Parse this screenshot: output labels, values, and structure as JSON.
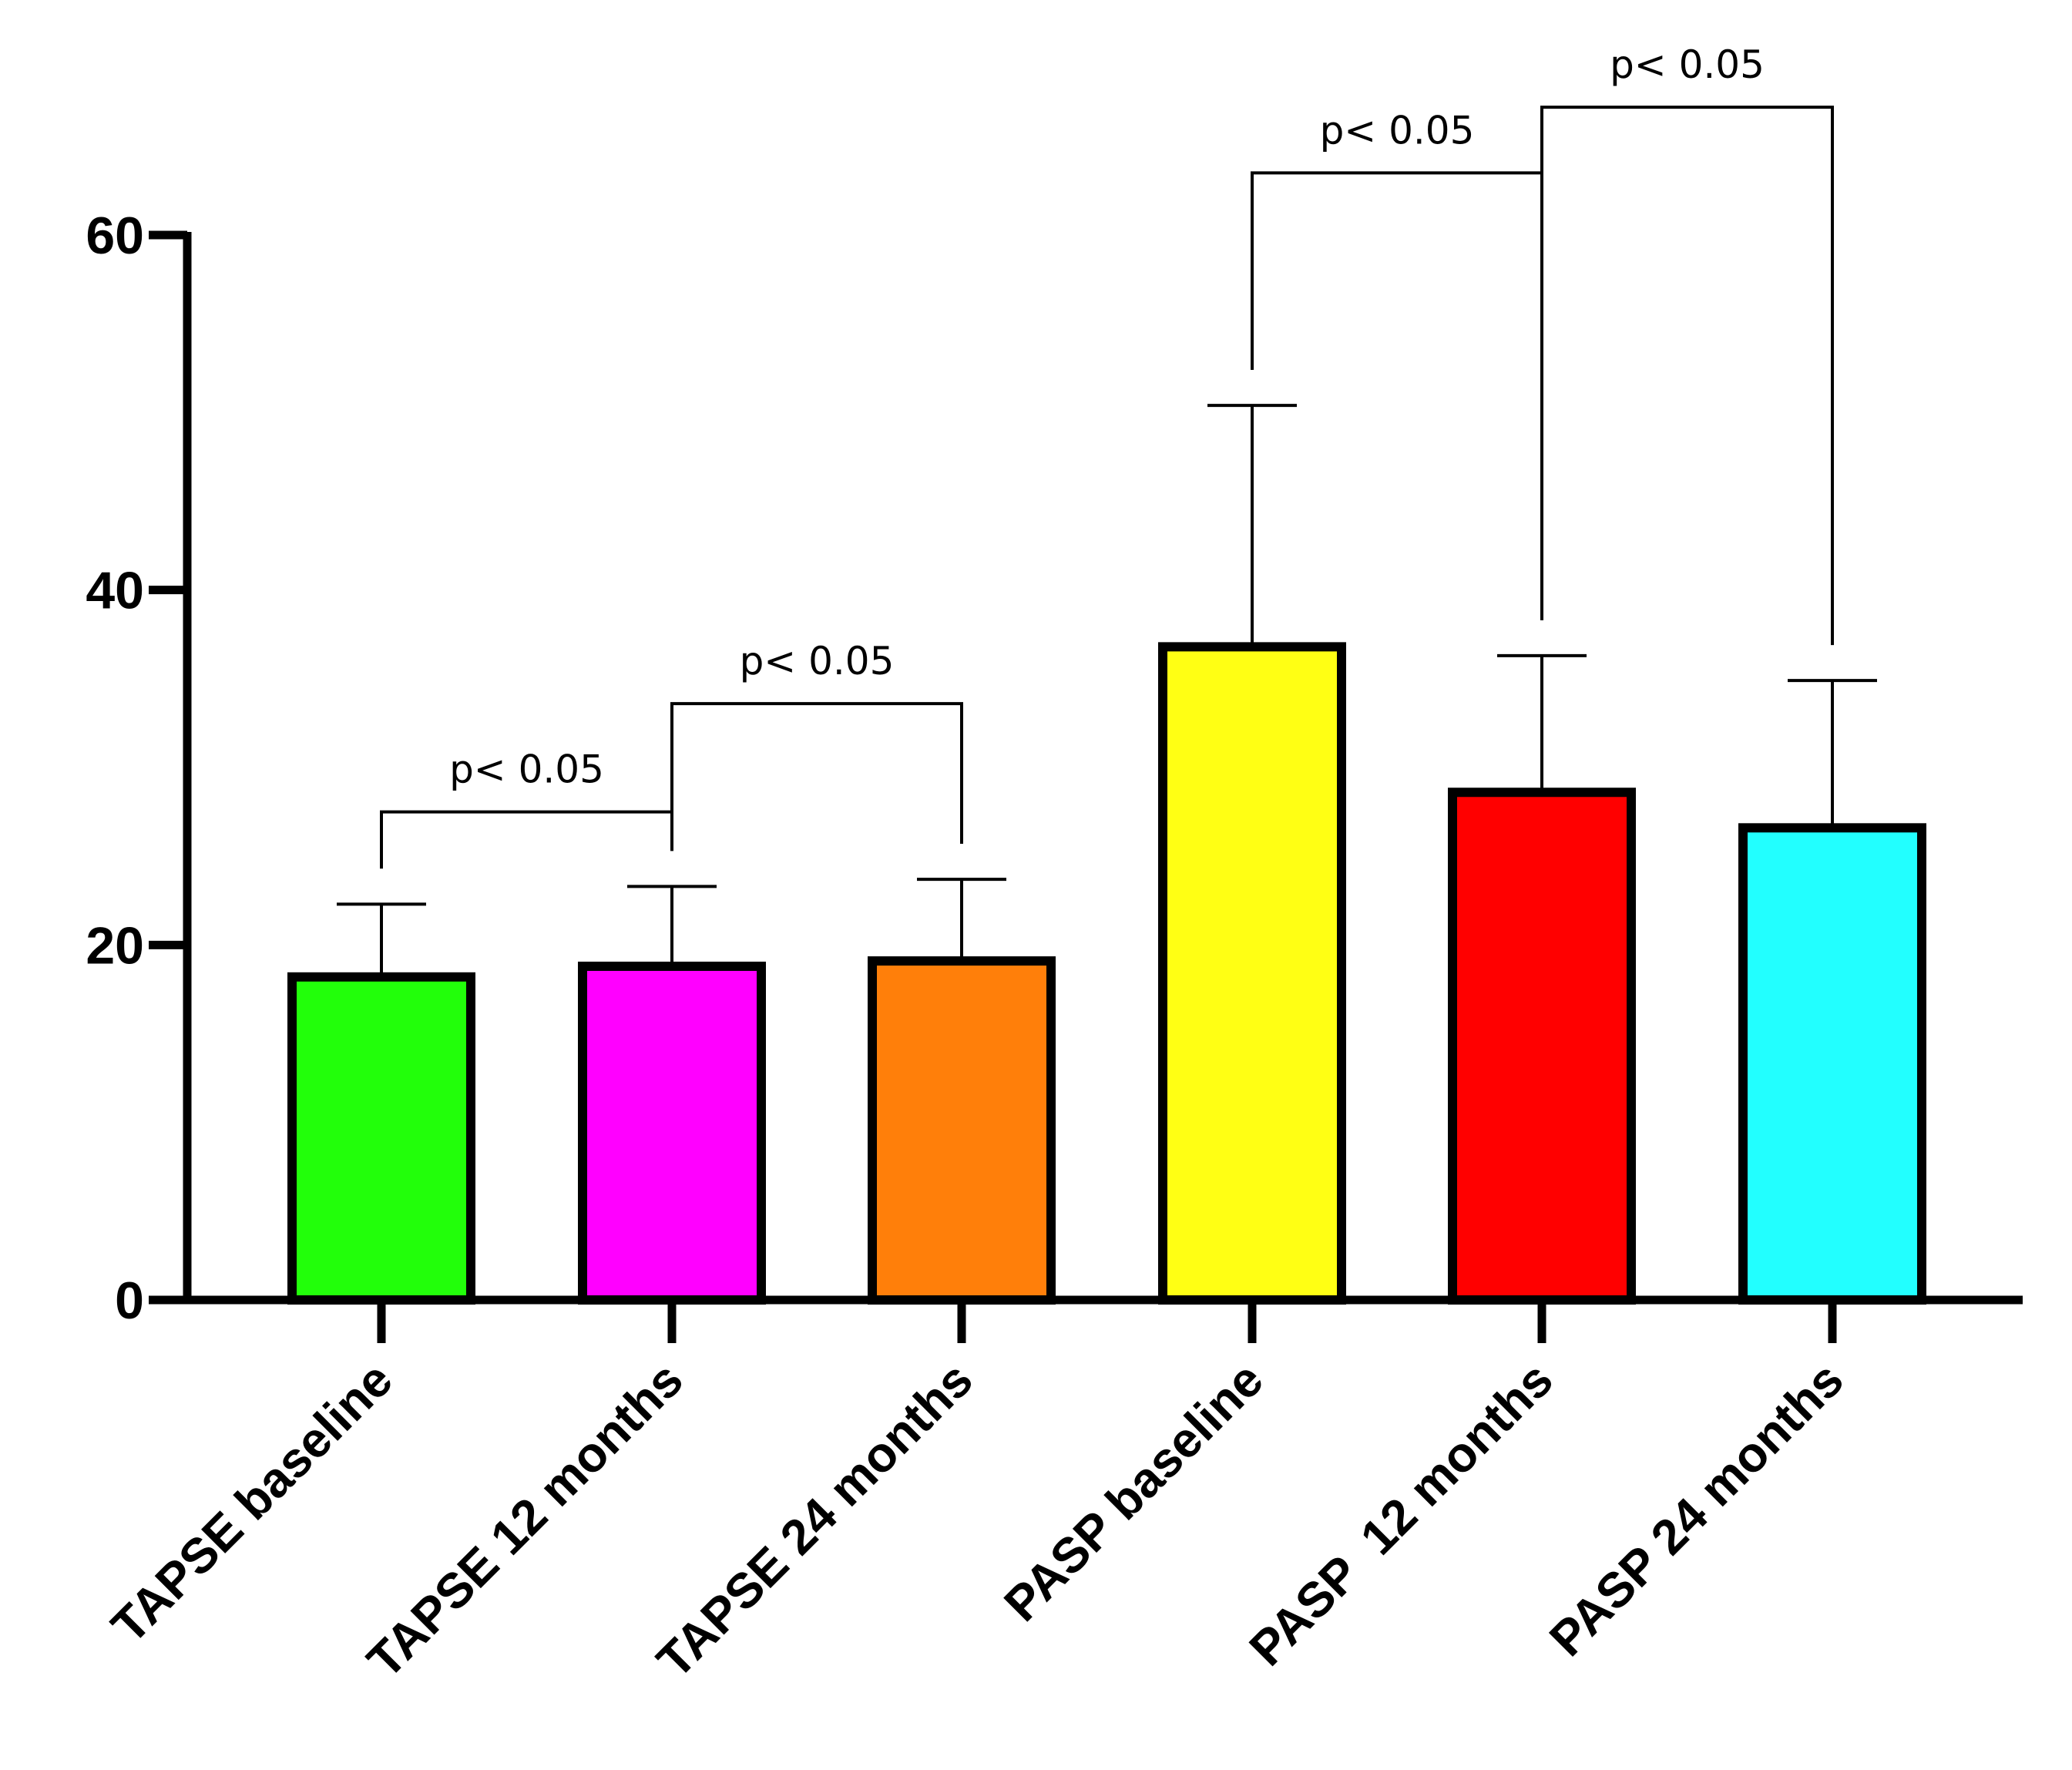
{
  "chart_data": {
    "type": "bar",
    "title": "",
    "xlabel": "",
    "ylabel": "",
    "ylim": [
      0,
      60
    ],
    "yticks": [
      0,
      20,
      40,
      60
    ],
    "categories": [
      "TAPSE baseline",
      "TAPSE 12 months",
      "TAPSE 24 months",
      "PASP baseline",
      "PASP  12 months",
      "PASP 24 months"
    ],
    "values": [
      18.2,
      18.8,
      19.1,
      36.8,
      28.6,
      26.6
    ],
    "errors": [
      4.1,
      4.5,
      4.6,
      13.6,
      7.7,
      8.3
    ],
    "colors": [
      "#22ff0a",
      "#ff00ff",
      "#ff7f0a",
      "#ffff14",
      "#ff0000",
      "#22ffff"
    ],
    "significance": [
      {
        "from": 0,
        "to": 1,
        "label": "p< 0.05",
        "y": 27.5
      },
      {
        "from": 1,
        "to": 2,
        "label": "p< 0.05",
        "y": 33.6
      },
      {
        "from": 3,
        "to": 4,
        "label": "p< 0.05",
        "y": 63.5
      },
      {
        "from": 4,
        "to": 5,
        "label": "p< 0.05",
        "y": 67.2
      }
    ]
  }
}
